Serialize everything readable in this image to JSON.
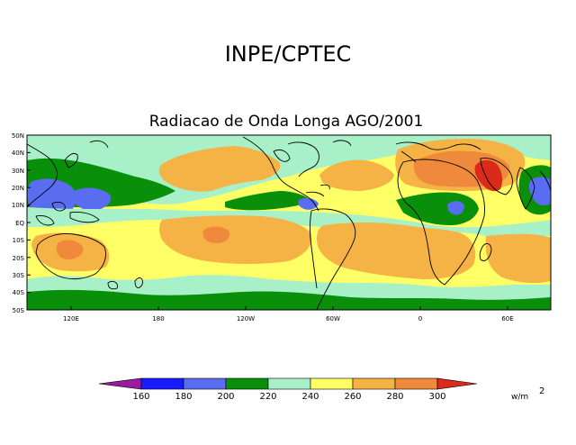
{
  "header": {
    "institution": "INPE/CPTEC",
    "subtitle": "Radiacao de Onda Longa AGO/2001"
  },
  "map": {
    "lat_labels": [
      "50N",
      "40N",
      "30N",
      "20N",
      "10N",
      "EQ",
      "10S",
      "20S",
      "30S",
      "40S",
      "50S"
    ],
    "lon_labels": [
      "120E",
      "180",
      "120W",
      "60W",
      "0",
      "60E"
    ]
  },
  "colorbar": {
    "levels": [
      "160",
      "180",
      "200",
      "220",
      "240",
      "260",
      "280",
      "300"
    ],
    "colors": [
      "#9b1ba0",
      "#1a1aff",
      "#5a6cf0",
      "#0a8f0a",
      "#a8f0c8",
      "#ffff66",
      "#f5b245",
      "#ef8a3c",
      "#d92a1a"
    ],
    "units_base": "w/m",
    "units_exp": "2"
  },
  "palette": {
    "c200": "#5a6cf0",
    "c220": "#0a8f0a",
    "c240": "#a8f0c8",
    "c260": "#ffff66",
    "c280": "#f5b245",
    "c300": "#ef8a3c",
    "c320": "#d92a1a"
  }
}
